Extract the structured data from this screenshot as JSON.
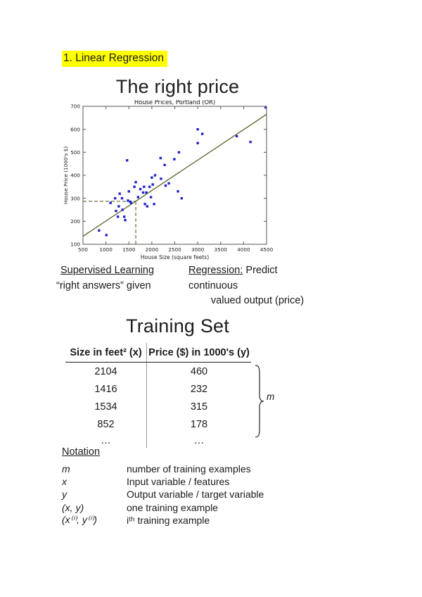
{
  "page": {
    "section_heading": "1. Linear Regression",
    "highlight_color": "#ffff00"
  },
  "slide1": {
    "title": "The right price",
    "left_note_line1": "Supervised Learning",
    "left_note_line2": "“right answers” given",
    "right_note_term": "Regression:",
    "right_note_rest": "Predict continuous",
    "right_note_line2": "valued output (price)"
  },
  "chart_data": {
    "type": "scatter",
    "title": "House Prices, Portland (OR)",
    "xlabel": "House Size (square feets)",
    "ylabel": "House Price (1000's $)",
    "xlim": [
      500,
      4500
    ],
    "ylim": [
      100,
      700
    ],
    "x_ticks": [
      500,
      1000,
      1500,
      2000,
      2500,
      3000,
      3500,
      4000,
      4500
    ],
    "y_ticks": [
      100,
      200,
      300,
      400,
      500,
      600,
      700
    ],
    "grid": false,
    "point_color": "#2222cc",
    "line_color": "#556325",
    "axis_color": "#555555",
    "points": [
      [
        850,
        160
      ],
      [
        1010,
        140
      ],
      [
        1100,
        280
      ],
      [
        1200,
        300
      ],
      [
        1220,
        245
      ],
      [
        1260,
        220
      ],
      [
        1280,
        265
      ],
      [
        1300,
        320
      ],
      [
        1350,
        300
      ],
      [
        1360,
        250
      ],
      [
        1400,
        220
      ],
      [
        1420,
        205
      ],
      [
        1460,
        465
      ],
      [
        1480,
        290
      ],
      [
        1500,
        330
      ],
      [
        1530,
        285
      ],
      [
        1550,
        280
      ],
      [
        1620,
        350
      ],
      [
        1650,
        370
      ],
      [
        1700,
        305
      ],
      [
        1750,
        340
      ],
      [
        1810,
        325
      ],
      [
        1830,
        350
      ],
      [
        1850,
        275
      ],
      [
        1880,
        325
      ],
      [
        1900,
        265
      ],
      [
        1950,
        350
      ],
      [
        1980,
        305
      ],
      [
        2000,
        390
      ],
      [
        2020,
        360
      ],
      [
        2050,
        275
      ],
      [
        2070,
        400
      ],
      [
        2190,
        475
      ],
      [
        2200,
        385
      ],
      [
        2280,
        445
      ],
      [
        2300,
        355
      ],
      [
        2370,
        365
      ],
      [
        2490,
        470
      ],
      [
        2570,
        330
      ],
      [
        2590,
        500
      ],
      [
        2650,
        300
      ],
      [
        3000,
        600
      ],
      [
        3000,
        540
      ],
      [
        3100,
        580
      ],
      [
        3850,
        570
      ],
      [
        4150,
        545
      ],
      [
        4480,
        695
      ]
    ],
    "fit_line": {
      "x1": 500,
      "y1": 135,
      "x2": 4500,
      "y2": 665
    },
    "dashed_marker": {
      "x": 1650,
      "y": 287
    }
  },
  "slide2": {
    "title": "Training Set",
    "table": {
      "col1_header": "Size in feet² (x)",
      "col2_header": "Price ($) in 1000's (y)",
      "rows": [
        [
          "2104",
          "460"
        ],
        [
          "1416",
          "232"
        ],
        [
          "1534",
          "315"
        ],
        [
          "852",
          "178"
        ],
        [
          "…",
          "…"
        ]
      ]
    },
    "brace_label": "m"
  },
  "notation": {
    "heading": "Notation",
    "rows": [
      {
        "symbol": "m",
        "desc": "number of training examples"
      },
      {
        "symbol": "x",
        "desc": "Input variable / features"
      },
      {
        "symbol": "y",
        "desc": "Output variable / target variable"
      },
      {
        "symbol": "(x, y)",
        "desc": "one training example"
      },
      {
        "symbol": "(x⁽ⁱ⁾, y⁽ⁱ⁾)",
        "desc": "iᵗʰ training example"
      }
    ]
  }
}
